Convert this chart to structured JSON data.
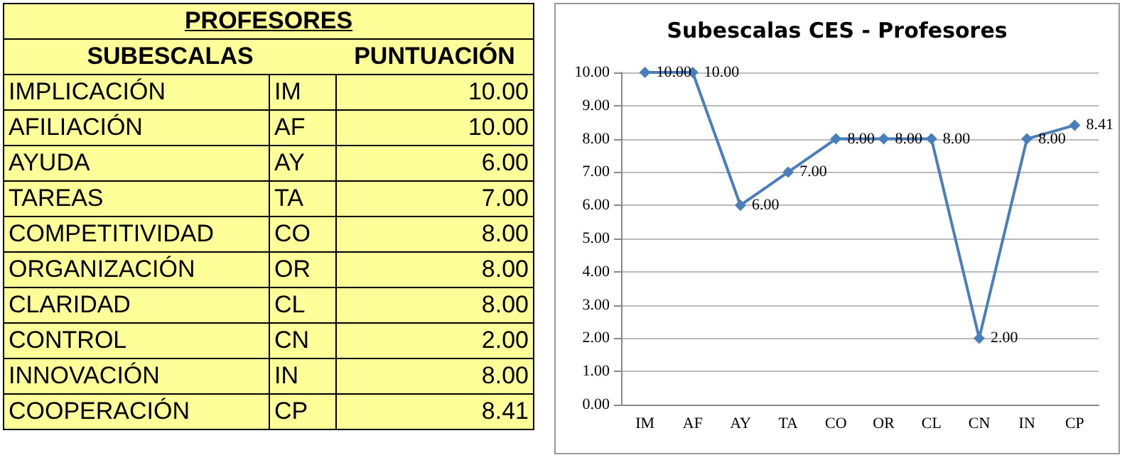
{
  "chart_data": [
    {
      "type": "other",
      "annotations": [
        "PROFESORES",
        "SUBESCALAS",
        "PUNTUACIÓN",
        "IMPLICACIÓN",
        "IM",
        "10.00",
        "AFILIACIÓN",
        "AF",
        "10.00",
        "AYUDA",
        "AY",
        "6.00",
        "TAREAS",
        "TA",
        "7.00",
        "COMPETITIVIDAD",
        "CO",
        "8.00",
        "ORGANIZACIÓN",
        "OR",
        "8.00",
        "CLARIDAD",
        "CL",
        "8.00",
        "CONTROL",
        "CN",
        "2.00",
        "INNOVACIÓN",
        "IN",
        "8.00",
        "COOPERACIÓN",
        "CP",
        "8.41"
      ]
    },
    {
      "type": "line",
      "title": "Subescalas CES - Profesores",
      "categories": [
        "IM",
        "AF",
        "AY",
        "TA",
        "CO",
        "OR",
        "CL",
        "CN",
        "IN",
        "CP"
      ],
      "series": [
        {
          "color": "#4a7ebb",
          "values": [
            10,
            10,
            6,
            7,
            8,
            8,
            8,
            2,
            8,
            8.41
          ]
        }
      ],
      "ylim": [
        0,
        10
      ],
      "yticks": [
        {
          "value": 0,
          "label": "0.00"
        },
        {
          "value": 1,
          "label": "1.00"
        },
        {
          "value": 2,
          "label": "2.00"
        },
        {
          "value": 3,
          "label": "3.00"
        },
        {
          "value": 4,
          "label": "4.00"
        },
        {
          "value": 5,
          "label": "5.00"
        },
        {
          "value": 6,
          "label": "6.00"
        },
        {
          "value": 7,
          "label": "7.00"
        },
        {
          "value": 8,
          "label": "8.00"
        },
        {
          "value": 9,
          "label": "9.00"
        },
        {
          "value": 10,
          "label": "10.00"
        }
      ],
      "value_labels": [
        "10.00",
        "10.00",
        "6.00",
        "7.00",
        "8.00",
        "8.00",
        "8.00",
        "2.00",
        "8.00",
        "8.41"
      ],
      "grid": "y",
      "marker": "diamond"
    }
  ]
}
